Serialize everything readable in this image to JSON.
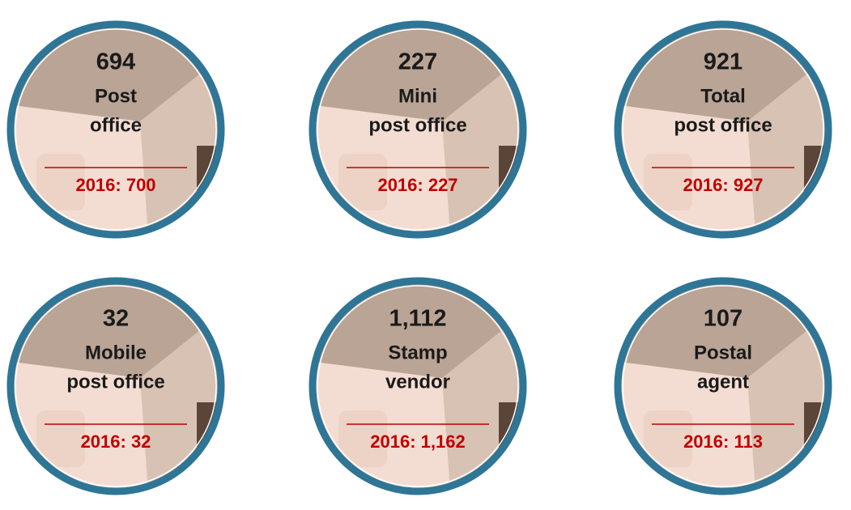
{
  "cards": [
    {
      "value": "694",
      "label": [
        "Post",
        "office"
      ],
      "previous": "2016: 700"
    },
    {
      "value": "227",
      "label": [
        "Mini",
        "post office"
      ],
      "previous": "2016: 227"
    },
    {
      "value": "921",
      "label": [
        "Total",
        "post office"
      ],
      "previous": "2016: 927"
    },
    {
      "value": "32",
      "label": [
        "Mobile",
        "post office"
      ],
      "previous": "2016: 32"
    },
    {
      "value": "1,112",
      "label": [
        "Stamp",
        "vendor"
      ],
      "previous": "2016: 1,162"
    },
    {
      "value": "107",
      "label": [
        "Postal",
        "agent"
      ],
      "previous": "2016: 113"
    }
  ]
}
